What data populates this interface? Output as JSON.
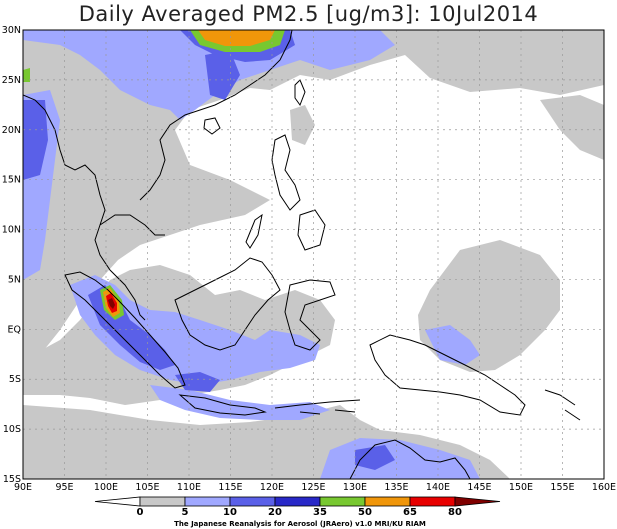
{
  "title": "Daily Averaged PM2.5 [ug/m3]: 10Jul2014",
  "lat_labels": [
    "30N",
    "25N",
    "20N",
    "15N",
    "10N",
    "5N",
    "EQ",
    "5S",
    "10S",
    "15S"
  ],
  "lon_labels": [
    "90E",
    "95E",
    "100E",
    "105E",
    "110E",
    "115E",
    "120E",
    "125E",
    "130E",
    "135E",
    "140E",
    "145E",
    "150E",
    "155E",
    "160E"
  ],
  "colorbar": {
    "ticks": [
      "0",
      "5",
      "10",
      "20",
      "35",
      "50",
      "65",
      "80"
    ],
    "colors": [
      "#ffffff",
      "#c8c8c8",
      "#a0a8ff",
      "#5a60e8",
      "#2828c8",
      "#78c830",
      "#f0960a",
      "#e80000",
      "#800000"
    ]
  },
  "credit": "The Japanese Reanalysis for Aerosol (JRAero) v1.0 MRI/KU RIAM"
}
